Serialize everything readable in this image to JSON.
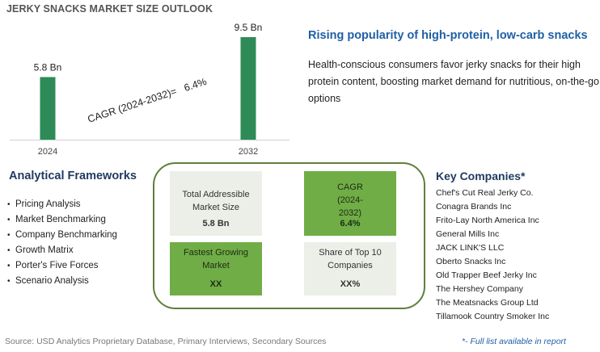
{
  "title": "JERKY SNACKS MARKET SIZE OUTLOOK",
  "chart_data": {
    "type": "bar",
    "categories": [
      "2024",
      "2032"
    ],
    "values": [
      5.8,
      9.5
    ],
    "value_labels": [
      "5.8 Bn",
      "9.5 Bn"
    ],
    "annotation": "CAGR (2024-2032)=   6.4%",
    "bar_color": "#2e8b57",
    "ylim": [
      0,
      9.5
    ],
    "grid": false
  },
  "headline": "Rising popularity of high-protein, low-carb snacks",
  "description": "Health-conscious consumers favor jerky snacks for their high protein content, boosting market demand for nutritious, on-the-go options",
  "analytical_frameworks": {
    "title": "Analytical Frameworks",
    "items": [
      "Pricing Analysis",
      "Market Benchmarking",
      "Company Benchmarking",
      "Growth Matrix",
      "Porter's Five Forces",
      "Scenario Analysis"
    ]
  },
  "metrics": {
    "tam": {
      "label": "Total Addressible Market Size",
      "value": "5.8 Bn"
    },
    "cagr": {
      "label": "CAGR (2024-2032)",
      "value": "6.4%"
    },
    "fastest": {
      "label": "Fastest Growing Market",
      "value": "XX"
    },
    "share": {
      "label": "Share of Top 10 Companies",
      "value": "XX%"
    }
  },
  "key_companies": {
    "title": "Key Companies*",
    "items": [
      "Chef's Cut Real Jerky Co.",
      "Conagra Brands Inc",
      "Frito-Lay North America Inc",
      "General Mills Inc",
      "JACK LINK'S LLC",
      "Oberto Snacks Inc",
      "Old Trapper Beef Jerky Inc",
      "The Hershey Company",
      "The Meatsnacks Group Ltd",
      "Tillamook Country Smoker Inc"
    ]
  },
  "source": "Source: USD Analytics Proprietary Database, Primary Interviews, Secondary Sources",
  "note": "*- Full list available in report",
  "colors": {
    "accent_blue": "#1f5fa6",
    "green_box": "#70ad47",
    "panel_border": "#5e7f3c"
  }
}
